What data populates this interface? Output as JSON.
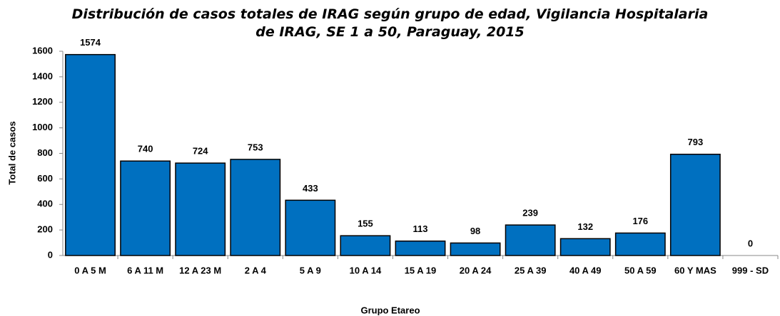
{
  "chart_data": {
    "type": "bar",
    "title": "Distribución de casos totales de IRAG según grupo de edad, Vigilancia Hospitalaria de IRAG, SE 1 a 50, Paraguay, 2015",
    "x_label": "Grupo Etareo",
    "y_label": "Total de casos",
    "categories": [
      "0 A 5 M",
      "6 A 11 M",
      "12 A 23 M",
      "2 A 4",
      "5 A 9",
      "10 A 14",
      "15 A 19",
      "20 A 24",
      "25 A 39",
      "40 A 49",
      "50 A 59",
      "60 Y MAS",
      "999 - SD"
    ],
    "values": [
      1574,
      740,
      724,
      753,
      433,
      155,
      113,
      98,
      239,
      132,
      176,
      793,
      0
    ],
    "color": "#0070c0",
    "ylim": [
      0,
      1600
    ],
    "yticks": [
      0,
      200,
      400,
      600,
      800,
      1000,
      1200,
      1400,
      1600
    ],
    "grid": false
  }
}
